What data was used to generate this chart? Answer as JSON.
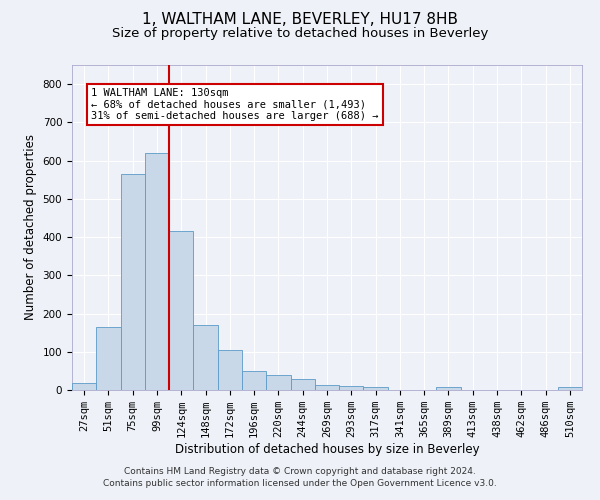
{
  "title": "1, WALTHAM LANE, BEVERLEY, HU17 8HB",
  "subtitle": "Size of property relative to detached houses in Beverley",
  "xlabel": "Distribution of detached houses by size in Beverley",
  "ylabel": "Number of detached properties",
  "bar_color": "#c8d8e8",
  "bar_edge_color": "#5a9ac8",
  "background_color": "#eef2f8",
  "grid_color": "#ffffff",
  "categories": [
    "27sqm",
    "51sqm",
    "75sqm",
    "99sqm",
    "124sqm",
    "148sqm",
    "172sqm",
    "196sqm",
    "220sqm",
    "244sqm",
    "269sqm",
    "293sqm",
    "317sqm",
    "341sqm",
    "365sqm",
    "389sqm",
    "413sqm",
    "438sqm",
    "462sqm",
    "486sqm",
    "510sqm"
  ],
  "values": [
    18,
    165,
    565,
    620,
    415,
    170,
    105,
    50,
    38,
    30,
    14,
    10,
    8,
    0,
    0,
    7,
    0,
    0,
    0,
    0,
    7
  ],
  "ylim": [
    0,
    850
  ],
  "yticks": [
    0,
    100,
    200,
    300,
    400,
    500,
    600,
    700,
    800
  ],
  "property_line_idx": 4,
  "property_line_color": "#cc0000",
  "annotation_text": "1 WALTHAM LANE: 130sqm\n← 68% of detached houses are smaller (1,493)\n31% of semi-detached houses are larger (688) →",
  "annotation_box_color": "#ffffff",
  "annotation_box_edge_color": "#cc0000",
  "footer_text": "Contains HM Land Registry data © Crown copyright and database right 2024.\nContains public sector information licensed under the Open Government Licence v3.0.",
  "title_fontsize": 11,
  "subtitle_fontsize": 9.5,
  "axis_label_fontsize": 8.5,
  "tick_fontsize": 7.5,
  "annotation_fontsize": 7.5,
  "footer_fontsize": 6.5
}
